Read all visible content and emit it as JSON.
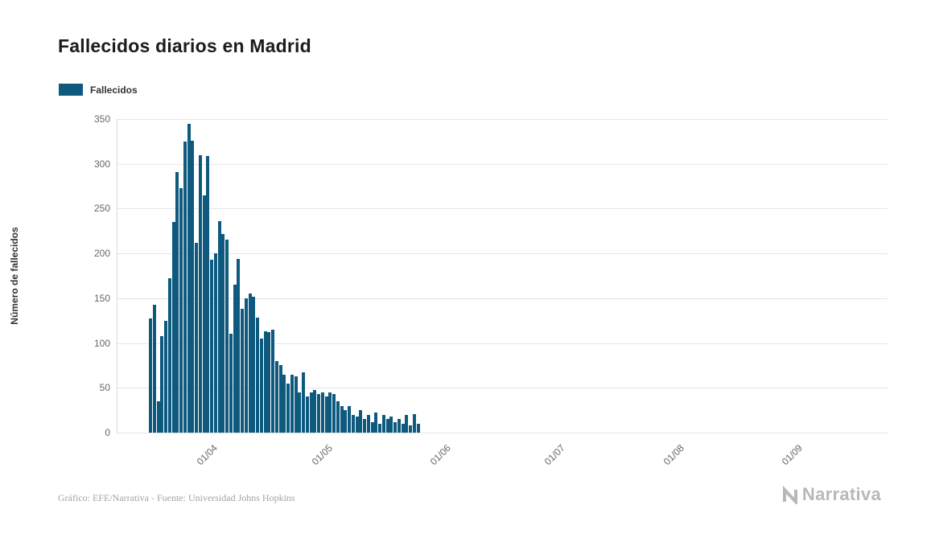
{
  "title": "Fallecidos diarios en Madrid",
  "legend": {
    "label": "Fallecidos",
    "color": "#0e5a7e"
  },
  "footer": {
    "credits": "Gráfico: EFE/Narrativa - Fuente: Universidad Johns Hopkins"
  },
  "branding": {
    "name": "Narrativa"
  },
  "chart_data": {
    "type": "bar",
    "title": "Fallecidos diarios en Madrid",
    "series_name": "Fallecidos",
    "xlabel": "",
    "ylabel": "Número de fallecidos",
    "ylim": [
      0,
      350
    ],
    "yticks": [
      0,
      50,
      100,
      150,
      200,
      250,
      300,
      350
    ],
    "grid": true,
    "legend_position": "top-left",
    "bar_color": "#0e5a7e",
    "start_date": "16/03",
    "frequency": "daily",
    "x_ticks": [
      {
        "label": "01/04",
        "day_index": 16
      },
      {
        "label": "01/05",
        "day_index": 46
      },
      {
        "label": "01/06",
        "day_index": 77
      },
      {
        "label": "01/07",
        "day_index": 107
      },
      {
        "label": "01/08",
        "day_index": 138
      },
      {
        "label": "01/09",
        "day_index": 169
      }
    ],
    "values": [
      127,
      143,
      35,
      108,
      125,
      172,
      235,
      291,
      273,
      325,
      345,
      326,
      212,
      310,
      265,
      309,
      193,
      200,
      236,
      222,
      215,
      110,
      165,
      194,
      138,
      150,
      155,
      152,
      128,
      105,
      113,
      112,
      115,
      80,
      75,
      65,
      55,
      65,
      63,
      45,
      67,
      40,
      45,
      48,
      43,
      45,
      40,
      45,
      43,
      35,
      30,
      25,
      30,
      20,
      18,
      25,
      15,
      20,
      12,
      22,
      10,
      20,
      15,
      18,
      12,
      15,
      10,
      20,
      8,
      21,
      10
    ]
  }
}
